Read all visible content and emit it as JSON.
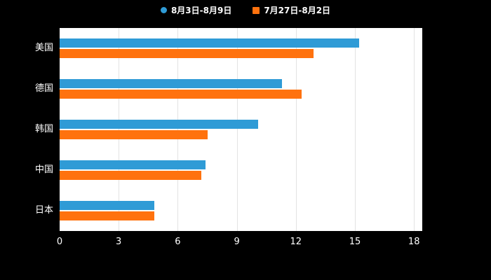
{
  "colors": {
    "background": "#000000",
    "plot_background": "#ffffff",
    "gridline": "#e3e3e3",
    "text": "#ffffff",
    "series1": "#2f9bd6",
    "series2": "#ff720e"
  },
  "chart_data": {
    "type": "bar",
    "orientation": "horizontal",
    "title": "",
    "xlabel": "",
    "ylabel": "",
    "categories": [
      "美国",
      "德国",
      "韩国",
      "中国",
      "日本"
    ],
    "series": [
      {
        "name": "8月3日-8月9日",
        "color": "#2f9bd6",
        "marker": "circle",
        "values": [
          15.2,
          11.3,
          10.1,
          7.4,
          4.8
        ]
      },
      {
        "name": "7月27日-8月2日",
        "color": "#ff720e",
        "marker": "square",
        "values": [
          12.9,
          12.3,
          7.5,
          7.2,
          4.8
        ]
      }
    ],
    "x_ticks": [
      0,
      3,
      6,
      9,
      12,
      15,
      18
    ],
    "xlim": [
      0,
      18.42
    ],
    "grid": true,
    "legend_position": "top"
  }
}
